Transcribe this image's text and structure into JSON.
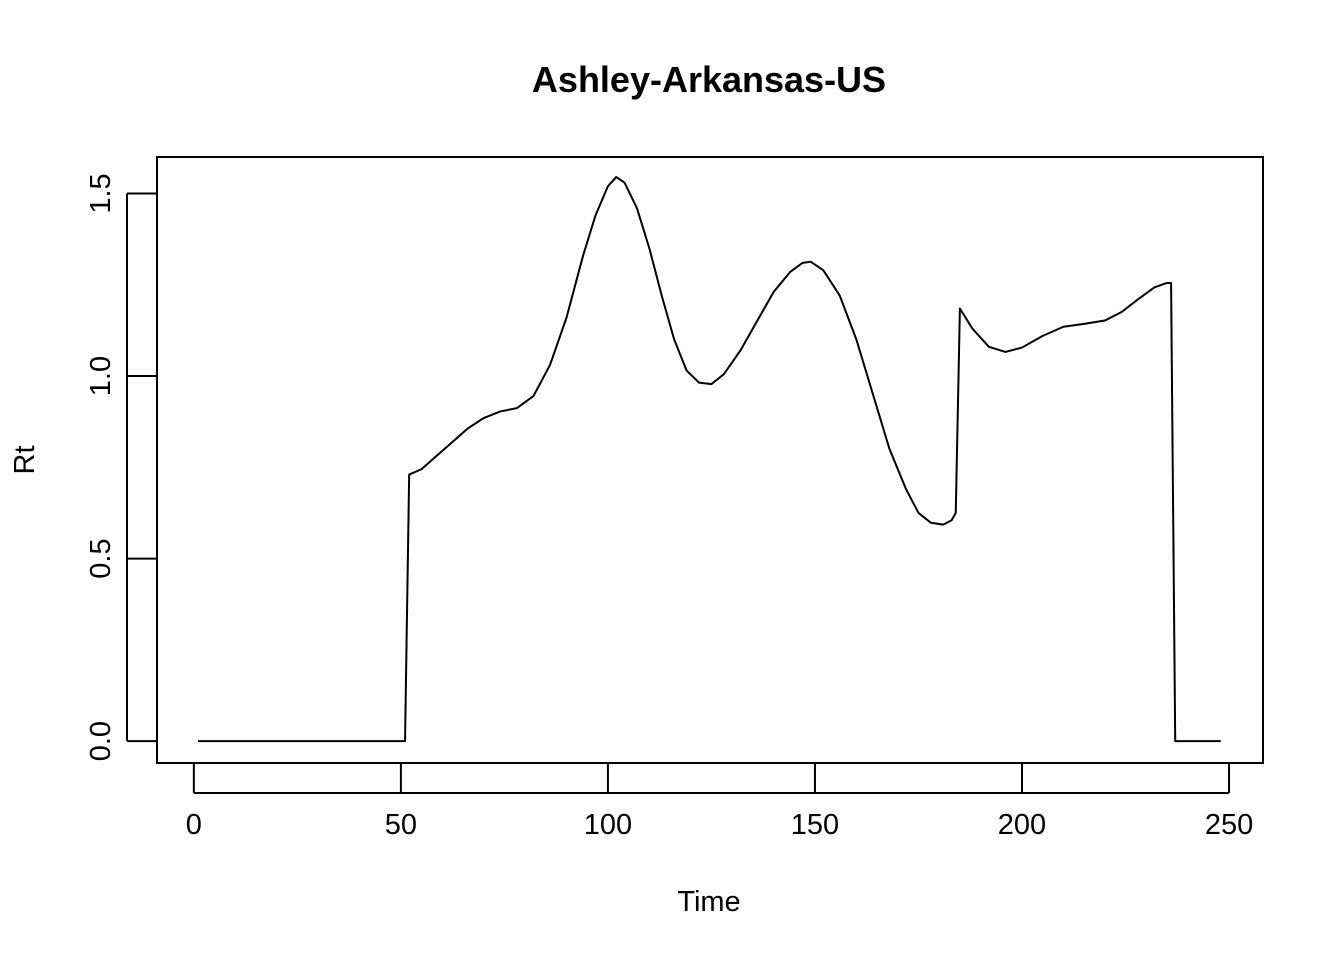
{
  "chart_data": {
    "type": "line",
    "title": "Ashley-Arkansas-US",
    "xlabel": "Time",
    "ylabel": "Rt",
    "xlim": [
      -8.9,
      258.2
    ],
    "ylim": [
      -0.06,
      1.6
    ],
    "x_ticks": [
      0,
      50,
      100,
      150,
      200,
      250
    ],
    "x_tick_labels": [
      "0",
      "50",
      "100",
      "150",
      "200",
      "250"
    ],
    "y_ticks": [
      0.0,
      0.5,
      1.0,
      1.5
    ],
    "y_tick_labels": [
      "0.0",
      "0.5",
      "1.0",
      "1.5"
    ],
    "grid": false,
    "legend": "none",
    "line_color": "#000000",
    "series": [
      {
        "points": [
          [
            1,
            0.0
          ],
          [
            10,
            0.0
          ],
          [
            20,
            0.0
          ],
          [
            30,
            0.0
          ],
          [
            40,
            0.0
          ],
          [
            51,
            0.0
          ],
          [
            52,
            0.73
          ],
          [
            55,
            0.745
          ],
          [
            58,
            0.775
          ],
          [
            62,
            0.815
          ],
          [
            66,
            0.855
          ],
          [
            70,
            0.885
          ],
          [
            74,
            0.903
          ],
          [
            78,
            0.912
          ],
          [
            82,
            0.945
          ],
          [
            86,
            1.03
          ],
          [
            90,
            1.16
          ],
          [
            94,
            1.33
          ],
          [
            97,
            1.44
          ],
          [
            100,
            1.52
          ],
          [
            102,
            1.545
          ],
          [
            104,
            1.53
          ],
          [
            107,
            1.46
          ],
          [
            110,
            1.35
          ],
          [
            113,
            1.22
          ],
          [
            116,
            1.1
          ],
          [
            119,
            1.015
          ],
          [
            122,
            0.982
          ],
          [
            125,
            0.978
          ],
          [
            128,
            1.005
          ],
          [
            132,
            1.07
          ],
          [
            136,
            1.15
          ],
          [
            140,
            1.23
          ],
          [
            144,
            1.285
          ],
          [
            147,
            1.31
          ],
          [
            149,
            1.313
          ],
          [
            152,
            1.29
          ],
          [
            156,
            1.22
          ],
          [
            160,
            1.1
          ],
          [
            164,
            0.95
          ],
          [
            168,
            0.8
          ],
          [
            172,
            0.69
          ],
          [
            175,
            0.625
          ],
          [
            178,
            0.598
          ],
          [
            181,
            0.593
          ],
          [
            183,
            0.605
          ],
          [
            184,
            0.625
          ],
          [
            185,
            1.185
          ],
          [
            188,
            1.13
          ],
          [
            192,
            1.08
          ],
          [
            196,
            1.066
          ],
          [
            200,
            1.078
          ],
          [
            205,
            1.11
          ],
          [
            210,
            1.135
          ],
          [
            215,
            1.143
          ],
          [
            220,
            1.152
          ],
          [
            224,
            1.175
          ],
          [
            228,
            1.21
          ],
          [
            232,
            1.243
          ],
          [
            235,
            1.255
          ],
          [
            236,
            1.255
          ],
          [
            237,
            0.0
          ],
          [
            240,
            0.0
          ],
          [
            248,
            0.0
          ]
        ]
      }
    ]
  }
}
